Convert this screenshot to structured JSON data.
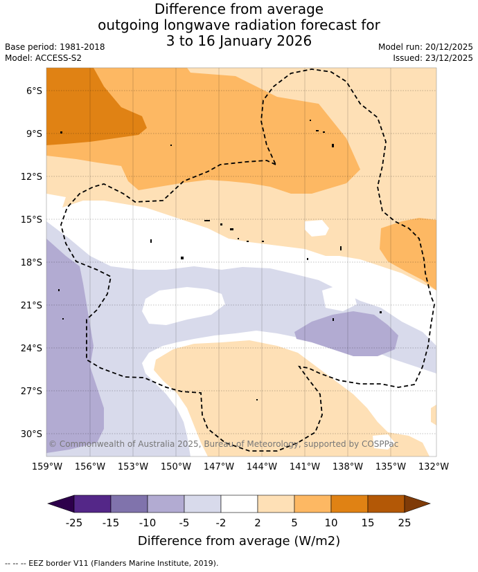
{
  "title": {
    "line1": "Difference from average",
    "line2": "outgoing longwave radiation forecast for",
    "line3": "3 to 16 January 2026"
  },
  "meta": {
    "base_period": "Base period: 1981-2018",
    "model": "Model: ACCESS-S2",
    "model_run": "Model run: 20/12/2025",
    "issued": "Issued: 23/12/2025"
  },
  "map": {
    "lat_labels": [
      "6°S",
      "9°S",
      "12°S",
      "15°S",
      "18°S",
      "21°S",
      "24°S",
      "27°S",
      "30°S"
    ],
    "lon_labels": [
      "159°W",
      "156°W",
      "153°W",
      "150°W",
      "147°W",
      "144°W",
      "141°W",
      "138°W",
      "135°W",
      "132°W"
    ],
    "copyright": "© Commonwealth of Australia 2025, Bureau of Meteorology, supported by COSPPac"
  },
  "colorbar": {
    "ticks": [
      "-25",
      "-15",
      "-10",
      "-5",
      "-2",
      "2",
      "5",
      "10",
      "15",
      "25"
    ],
    "colors": [
      "#2d004b",
      "#542788",
      "#8073ac",
      "#b2abd2",
      "#d8daeb",
      "#ffffff",
      "#fee0b6",
      "#fdb863",
      "#e08214",
      "#b35806",
      "#7f3b08"
    ],
    "label": "Difference from average (W/m2)"
  },
  "footnote": "-- -- -- EEZ border V11 (Flanders Marine Institute, 2019)."
}
